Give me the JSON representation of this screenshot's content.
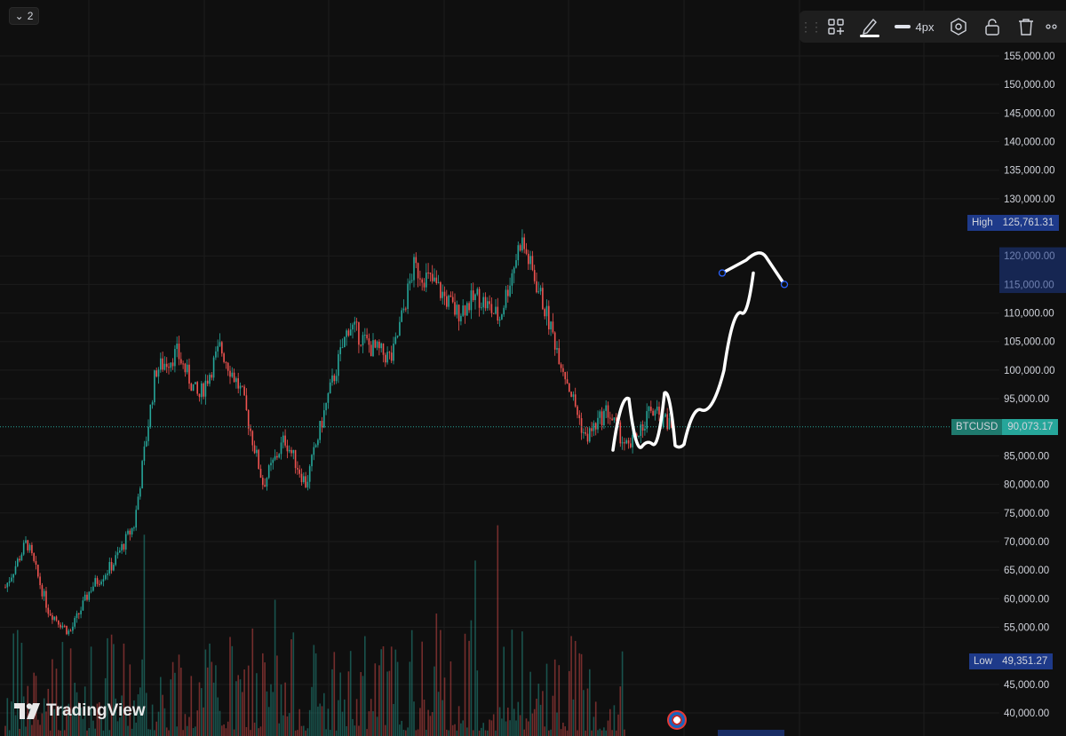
{
  "header": {
    "collapse_count": "2"
  },
  "toolbar": {
    "width_label": "4px",
    "icons": [
      "grip-icon",
      "template-icon",
      "pencil-icon",
      "line-width-icon",
      "settings-icon",
      "lock-icon",
      "trash-icon",
      "more-icon"
    ]
  },
  "branding": {
    "logo_text": "TradingView"
  },
  "colors": {
    "background": "#0f0f0f",
    "grid": "#1c1c1c",
    "candle_up": "#26a69a",
    "candle_down": "#ef5350",
    "price_line": "#26a69a",
    "tag_blue": "#1e3a8a",
    "drawing": "#ffffff"
  },
  "chart_data": {
    "type": "candlestick",
    "symbol": "BTCUSD",
    "current_price": 90073.17,
    "current_price_label": "90,073.17",
    "high": {
      "label": "High",
      "value": 125761.31,
      "text": "125,761.31"
    },
    "low": {
      "label": "Low",
      "value": 49351.27,
      "text": "49,351.27"
    },
    "ylim": [
      39000,
      160000
    ],
    "y_ticks": [
      {
        "value": 155000,
        "label": "155,000.00"
      },
      {
        "value": 150000,
        "label": "150,000.00"
      },
      {
        "value": 145000,
        "label": "145,000.00"
      },
      {
        "value": 140000,
        "label": "140,000.00"
      },
      {
        "value": 135000,
        "label": "135,000.00"
      },
      {
        "value": 130000,
        "label": "130,000.00"
      },
      {
        "value": 120000,
        "label": "120,000.00"
      },
      {
        "value": 115000,
        "label": "115,000.00"
      },
      {
        "value": 110000,
        "label": "110,000.00"
      },
      {
        "value": 105000,
        "label": "105,000.00"
      },
      {
        "value": 100000,
        "label": "100,000.00"
      },
      {
        "value": 95000,
        "label": "95,000.00"
      },
      {
        "value": 85000,
        "label": "85,000.00"
      },
      {
        "value": 80000,
        "label": "80,000.00"
      },
      {
        "value": 75000,
        "label": "75,000.00"
      },
      {
        "value": 70000,
        "label": "70,000.00"
      },
      {
        "value": 65000,
        "label": "65,000.00"
      },
      {
        "value": 60000,
        "label": "60,000.00"
      },
      {
        "value": 55000,
        "label": "55,000.00"
      },
      {
        "value": 45000,
        "label": "45,000.00"
      },
      {
        "value": 40000,
        "label": "40,000.00"
      }
    ],
    "trend_anchors": [
      62000,
      70000,
      58000,
      54000,
      62000,
      66000,
      73000,
      100000,
      103000,
      95000,
      104000,
      96000,
      80000,
      88000,
      80000,
      95000,
      108000,
      104000,
      102000,
      118000,
      115000,
      110000,
      113000,
      109000,
      123000,
      112000,
      100000,
      88000,
      93000,
      86000,
      93000,
      90073
    ],
    "volume_max_ratio": 0.33,
    "drawing_path_values": [
      [
        0,
        86000
      ],
      [
        1,
        95000
      ],
      [
        2,
        86500
      ],
      [
        3,
        87000
      ],
      [
        4,
        96000
      ],
      [
        5,
        86800
      ],
      [
        6,
        87000
      ],
      [
        7,
        93000
      ],
      [
        8,
        100000
      ],
      [
        9,
        110000
      ],
      [
        10,
        117000
      ]
    ],
    "projection_values": [
      [
        0,
        117000
      ],
      [
        1,
        120500
      ],
      [
        2,
        115000
      ]
    ]
  }
}
